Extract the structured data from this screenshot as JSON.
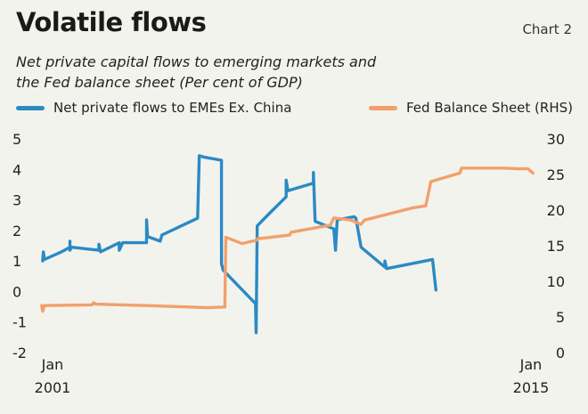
{
  "title": "Volatile flows",
  "chart_label": "Chart 2",
  "subtitle_line1": "Net private capital flows to emerging markets and",
  "subtitle_line2": "the Fed balance sheet (Per cent of GDP)",
  "colors": {
    "flows": "#2a8ac4",
    "fed": "#f2a06a",
    "background": "#f3f3ee"
  },
  "chart_data": {
    "type": "line",
    "title": "Volatile flows",
    "subtitle": "Net private capital flows to emerging markets and the Fed balance sheet (Per cent of GDP)",
    "x_tick_labels": [
      {
        "line1": "Jan",
        "line2": "2001",
        "x": 2001.0
      },
      {
        "line1": "Jan",
        "line2": "2015",
        "x": 2015.0
      }
    ],
    "xlim": [
      2000.9,
      2015.5
    ],
    "y_left": {
      "lim": [
        -2,
        5
      ],
      "ticks": [
        "5",
        "4",
        "3",
        "2",
        "1",
        "0",
        "-1",
        "-2"
      ]
    },
    "y_right": {
      "lim": [
        0,
        30
      ],
      "ticks": [
        "30",
        "25",
        "20",
        "15",
        "10",
        "5",
        "0"
      ]
    },
    "legend_position": "top",
    "grid": false,
    "series": [
      {
        "name": "Net private flows to EMEs Ex. China",
        "axis": "left",
        "color": "#2a8ac4",
        "points": [
          [
            2000.95,
            1.0
          ],
          [
            2000.97,
            1.3
          ],
          [
            2001.0,
            1.05
          ],
          [
            2001.2,
            1.15
          ],
          [
            2001.5,
            1.3
          ],
          [
            2001.75,
            1.45
          ],
          [
            2001.75,
            1.65
          ],
          [
            2001.75,
            1.35
          ],
          [
            2001.8,
            1.45
          ],
          [
            2002.6,
            1.35
          ],
          [
            2002.6,
            1.55
          ],
          [
            2002.65,
            1.3
          ],
          [
            2003.2,
            1.6
          ],
          [
            2003.2,
            1.35
          ],
          [
            2003.3,
            1.6
          ],
          [
            2003.8,
            1.6
          ],
          [
            2004.0,
            1.6
          ],
          [
            2004.0,
            2.35
          ],
          [
            2004.03,
            1.8
          ],
          [
            2004.4,
            1.65
          ],
          [
            2004.45,
            1.85
          ],
          [
            2005.5,
            2.4
          ],
          [
            2005.55,
            4.45
          ],
          [
            2005.7,
            4.4
          ],
          [
            2006.2,
            4.3
          ],
          [
            2006.2,
            0.9
          ],
          [
            2006.25,
            0.7
          ],
          [
            2007.2,
            -0.4
          ],
          [
            2007.22,
            -1.35
          ],
          [
            2007.25,
            2.15
          ],
          [
            2007.6,
            2.55
          ],
          [
            2008.1,
            3.1
          ],
          [
            2008.1,
            3.65
          ],
          [
            2008.15,
            3.3
          ],
          [
            2008.9,
            3.55
          ],
          [
            2008.9,
            3.9
          ],
          [
            2008.95,
            2.3
          ],
          [
            2009.5,
            2.05
          ],
          [
            2009.55,
            1.35
          ],
          [
            2009.6,
            2.35
          ],
          [
            2010.1,
            2.45
          ],
          [
            2010.15,
            2.4
          ],
          [
            2010.3,
            1.45
          ],
          [
            2011.0,
            0.8
          ],
          [
            2011.0,
            1.0
          ],
          [
            2011.05,
            0.75
          ],
          [
            2011.5,
            0.85
          ],
          [
            2012.4,
            1.05
          ],
          [
            2012.5,
            0.05
          ]
        ]
      },
      {
        "name": "Fed Balance Sheet (RHS)",
        "axis": "right",
        "color": "#f2a06a",
        "points": [
          [
            2000.92,
            6.6
          ],
          [
            2000.95,
            5.8
          ],
          [
            2001.0,
            6.6
          ],
          [
            2002.4,
            6.7
          ],
          [
            2002.45,
            7.0
          ],
          [
            2002.5,
            6.8
          ],
          [
            2004.0,
            6.6
          ],
          [
            2005.8,
            6.3
          ],
          [
            2006.3,
            6.4
          ],
          [
            2006.33,
            16.2
          ],
          [
            2006.8,
            15.3
          ],
          [
            2007.25,
            15.8
          ],
          [
            2007.26,
            16.0
          ],
          [
            2007.5,
            16.1
          ],
          [
            2008.2,
            16.5
          ],
          [
            2008.25,
            16.9
          ],
          [
            2009.4,
            17.9
          ],
          [
            2009.5,
            18.9
          ],
          [
            2010.0,
            18.6
          ],
          [
            2010.3,
            18.0
          ],
          [
            2010.4,
            18.6
          ],
          [
            2011.8,
            20.3
          ],
          [
            2012.2,
            20.6
          ],
          [
            2012.35,
            24.0
          ],
          [
            2013.2,
            25.2
          ],
          [
            2013.25,
            25.9
          ],
          [
            2014.5,
            25.9
          ],
          [
            2014.9,
            25.8
          ],
          [
            2015.2,
            25.8
          ],
          [
            2015.35,
            25.2
          ]
        ]
      }
    ]
  }
}
